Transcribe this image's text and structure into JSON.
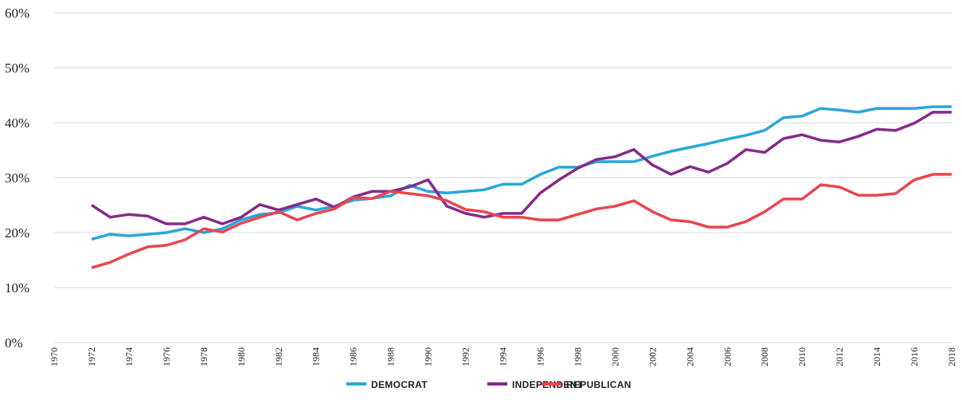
{
  "chart_data": {
    "type": "line",
    "x": [
      1972,
      1973,
      1974,
      1975,
      1976,
      1977,
      1978,
      1979,
      1980,
      1981,
      1982,
      1983,
      1984,
      1985,
      1986,
      1987,
      1988,
      1989,
      1990,
      1991,
      1992,
      1993,
      1994,
      1995,
      1996,
      1997,
      1998,
      1999,
      2000,
      2001,
      2002,
      2003,
      2004,
      2005,
      2006,
      2007,
      2008,
      2009,
      2010,
      2011,
      2012,
      2013,
      2014,
      2015,
      2016,
      2017,
      2018
    ],
    "series": [
      {
        "name": "DEMOCRAT",
        "color": "#2aa7d8",
        "values": [
          18.8,
          19.7,
          19.4,
          19.7,
          20.0,
          20.7,
          20.0,
          20.7,
          22.3,
          23.3,
          23.6,
          24.8,
          24.1,
          24.8,
          25.9,
          26.2,
          26.7,
          28.6,
          27.5,
          27.2,
          27.5,
          27.8,
          28.8,
          28.8,
          30.6,
          31.9,
          31.9,
          32.9,
          32.9,
          32.9,
          33.9,
          34.8,
          35.5,
          36.2,
          37.0,
          37.7,
          38.6,
          40.9,
          41.2,
          42.6,
          42.3,
          41.9,
          42.6,
          42.6,
          42.6,
          42.9,
          42.9
        ]
      },
      {
        "name": "INDEPENDENT",
        "color": "#862a8a",
        "values": [
          25.0,
          22.8,
          23.3,
          23.0,
          21.6,
          21.6,
          22.8,
          21.6,
          22.8,
          25.1,
          24.1,
          25.1,
          26.1,
          24.6,
          26.5,
          27.5,
          27.5,
          28.3,
          29.6,
          24.8,
          23.5,
          22.8,
          23.5,
          23.5,
          27.2,
          29.6,
          31.7,
          33.3,
          33.8,
          35.1,
          32.3,
          30.6,
          32.0,
          31.0,
          32.6,
          35.1,
          34.6,
          37.1,
          37.8,
          36.8,
          36.5,
          37.5,
          38.8,
          38.6,
          39.9,
          41.9,
          41.9
        ]
      },
      {
        "name": "REPUBLICAN",
        "color": "#e8464e",
        "values": [
          13.6,
          14.6,
          16.1,
          17.4,
          17.7,
          18.7,
          20.7,
          20.1,
          21.7,
          22.8,
          23.8,
          22.3,
          23.5,
          24.3,
          26.4,
          26.2,
          27.5,
          27.1,
          26.7,
          25.8,
          24.2,
          23.8,
          22.8,
          22.8,
          22.3,
          22.3,
          23.3,
          24.3,
          24.8,
          25.8,
          23.8,
          22.3,
          22.0,
          21.0,
          21.0,
          22.0,
          23.8,
          26.1,
          26.1,
          28.7,
          28.3,
          26.8,
          26.8,
          27.1,
          29.6,
          30.6,
          30.6
        ]
      }
    ],
    "xlim": [
      1970,
      2018
    ],
    "xticks": [
      1970,
      1972,
      1974,
      1976,
      1978,
      1980,
      1982,
      1984,
      1986,
      1988,
      1990,
      1992,
      1994,
      1996,
      1998,
      2000,
      2002,
      2004,
      2006,
      2008,
      2010,
      2012,
      2014,
      2016,
      2018
    ],
    "ylim": [
      0,
      60
    ],
    "yticks": [
      {
        "value": 0,
        "label": "0%"
      },
      {
        "value": 10,
        "label": "10%"
      },
      {
        "value": 20,
        "label": "20%"
      },
      {
        "value": 30,
        "label": "30%"
      },
      {
        "value": 40,
        "label": "40%"
      },
      {
        "value": 50,
        "label": "50%"
      },
      {
        "value": 60,
        "label": "60%"
      }
    ],
    "grid": true,
    "legend": "bottom"
  }
}
